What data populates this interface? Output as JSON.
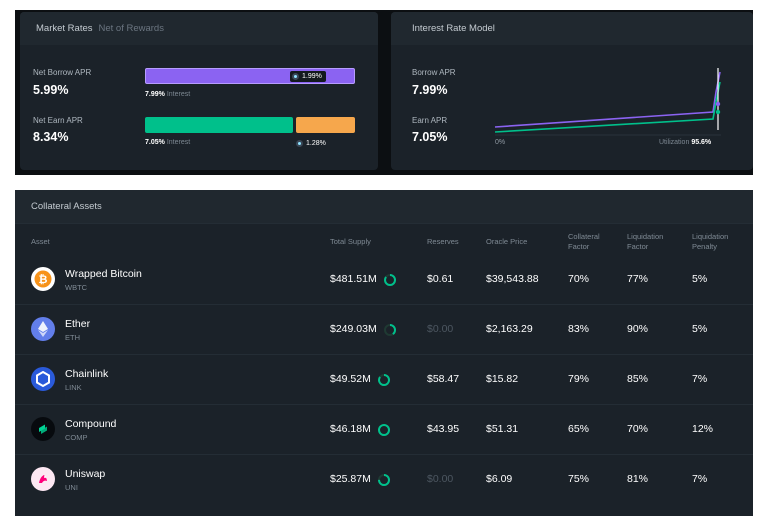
{
  "market_rates": {
    "title": "Market Rates",
    "subtitle": "Net of Rewards",
    "net_borrow_label": "Net Borrow APR",
    "net_borrow_value": "5.99%",
    "borrow_reward": "1.99%",
    "borrow_interest_value": "7.99%",
    "borrow_interest_label": "Interest",
    "net_earn_label": "Net Earn APR",
    "net_earn_value": "8.34%",
    "earn_interest_value": "7.05%",
    "earn_interest_label": "Interest",
    "earn_reward": "1.28%",
    "colors": {
      "borrow": "#8b63f2",
      "earn": "#00c08b",
      "reward": "#f6a74c"
    }
  },
  "interest_model": {
    "title": "Interest Rate Model",
    "borrow_label": "Borrow APR",
    "borrow_value": "7.99%",
    "earn_label": "Earn APR",
    "earn_value": "7.05%",
    "x_start": "0%",
    "utilization_label": "Utilization",
    "utilization_value": "95.6%",
    "utilization_fraction": 0.956
  },
  "collateral": {
    "title": "Collateral Assets",
    "headers": {
      "asset": "Asset",
      "total_supply": "Total Supply",
      "reserves": "Reserves",
      "oracle_price": "Oracle Price",
      "collateral_factor": "Collateral Factor",
      "liquidation_factor": "Liquidation Factor",
      "liquidation_penalty": "Liquidation Penalty"
    },
    "rows": [
      {
        "name": "Wrapped Bitcoin",
        "symbol": "WBTC",
        "icon": "bitcoin-icon",
        "total_supply": "$481.51M",
        "supply_fraction": 0.85,
        "reserves": "$0.61",
        "reserves_dim": false,
        "oracle_price": "$39,543.88",
        "collateral_factor": "70%",
        "liquidation_factor": "77%",
        "liquidation_penalty": "5%"
      },
      {
        "name": "Ether",
        "symbol": "ETH",
        "icon": "ether-icon",
        "total_supply": "$249.03M",
        "supply_fraction": 0.4,
        "reserves": "$0.00",
        "reserves_dim": true,
        "oracle_price": "$2,163.29",
        "collateral_factor": "83%",
        "liquidation_factor": "90%",
        "liquidation_penalty": "5%"
      },
      {
        "name": "Chainlink",
        "symbol": "LINK",
        "icon": "chainlink-icon",
        "total_supply": "$49.52M",
        "supply_fraction": 0.85,
        "reserves": "$58.47",
        "reserves_dim": false,
        "oracle_price": "$15.82",
        "collateral_factor": "79%",
        "liquidation_factor": "85%",
        "liquidation_penalty": "7%"
      },
      {
        "name": "Compound",
        "symbol": "COMP",
        "icon": "compound-icon",
        "total_supply": "$46.18M",
        "supply_fraction": 1.0,
        "reserves": "$43.95",
        "reserves_dim": false,
        "oracle_price": "$51.31",
        "collateral_factor": "65%",
        "liquidation_factor": "70%",
        "liquidation_penalty": "12%"
      },
      {
        "name": "Uniswap",
        "symbol": "UNI",
        "icon": "uniswap-icon",
        "total_supply": "$25.87M",
        "supply_fraction": 0.75,
        "reserves": "$0.00",
        "reserves_dim": true,
        "oracle_price": "$6.09",
        "collateral_factor": "75%",
        "liquidation_factor": "81%",
        "liquidation_penalty": "7%"
      }
    ]
  }
}
